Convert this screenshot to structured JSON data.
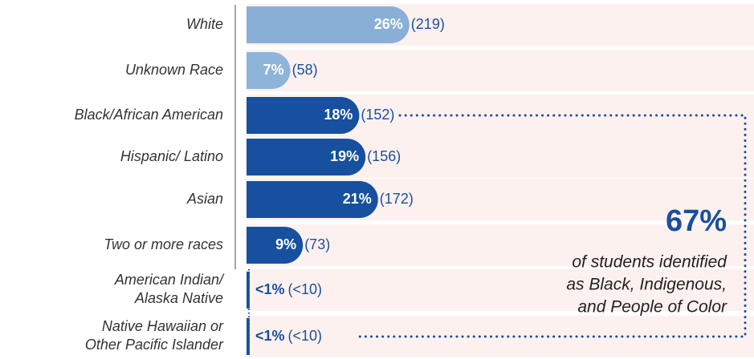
{
  "chart_data": {
    "type": "bar",
    "orientation": "horizontal",
    "categories": [
      "White",
      "Unknown Race",
      "Black/African American",
      "Hispanic/ Latino",
      "Asian",
      "Two or more races",
      [
        "American Indian/",
        "Alaska Native"
      ],
      [
        "Native Hawaiian or",
        "Other Pacific Islander"
      ]
    ],
    "values": [
      26,
      7,
      18,
      19,
      21,
      9,
      0.5,
      0.5
    ],
    "value_labels": [
      "26%",
      "7%",
      "18%",
      "19%",
      "21%",
      "9%",
      "<1%",
      "<1%"
    ],
    "count_labels": [
      "(219)",
      "(58)",
      "(152)",
      "(156)",
      "(172)",
      "(73)",
      "(<10)",
      "(<10)"
    ],
    "colors": [
      "#8aafd6",
      "#8fb4da",
      "#16509e",
      "#16509e",
      "#16509e",
      "#16509e",
      "#16509e",
      "#16509e"
    ],
    "annotation": {
      "value": 67,
      "label": "67%",
      "lines": [
        "of students identified",
        "as Black, Indigenous,",
        "and People of Color"
      ]
    }
  }
}
